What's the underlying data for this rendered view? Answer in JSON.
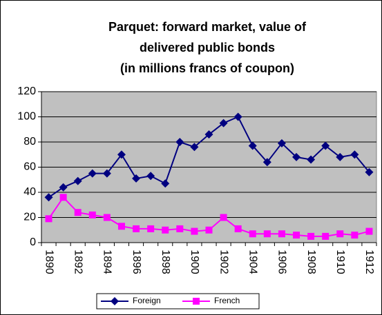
{
  "chart_data": {
    "type": "line",
    "title": [
      "Parquet: forward market, value of",
      "delivered public bonds",
      "(in millions francs of coupon)"
    ],
    "categories": [
      "1890",
      null,
      "1892",
      null,
      "1894",
      null,
      "1896",
      null,
      "1898",
      null,
      "1900",
      null,
      "1902",
      null,
      "1904",
      null,
      "1906",
      null,
      "1908",
      null,
      "1910",
      null,
      "1912"
    ],
    "series": [
      {
        "name": "Foreign",
        "color": "#000080",
        "marker": "diamond",
        "values": [
          36,
          44,
          49,
          55,
          55,
          70,
          51,
          53,
          47,
          80,
          76,
          86,
          95,
          100,
          77,
          64,
          79,
          68,
          66,
          77,
          68,
          70,
          56
        ]
      },
      {
        "name": "French",
        "color": "#ff00ff",
        "marker": "square",
        "values": [
          19,
          36,
          24,
          22,
          20,
          13,
          11,
          11,
          10,
          11,
          9,
          10,
          20,
          11,
          7,
          7,
          7,
          6,
          5,
          5,
          7,
          6,
          9
        ]
      }
    ],
    "ylim": [
      0,
      120
    ],
    "yticks": [
      0,
      20,
      40,
      60,
      80,
      100,
      120
    ],
    "grid": true,
    "legend": "bottom"
  }
}
